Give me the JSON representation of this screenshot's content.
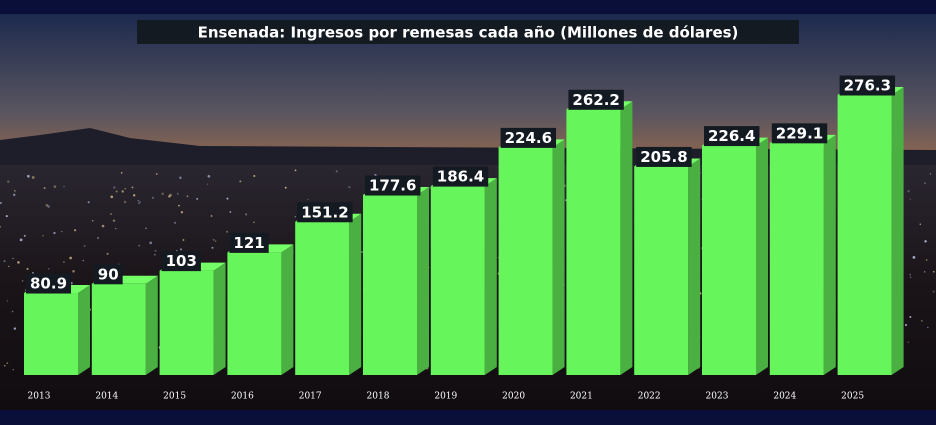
{
  "chart_data": {
    "type": "bar",
    "title": "Ensenada: Ingresos por remesas cada año (Millones de dólares)",
    "categories": [
      "2013",
      "2014",
      "2015",
      "2016",
      "2017",
      "2018",
      "2019",
      "2020",
      "2021",
      "2022",
      "2023",
      "2024",
      "2025"
    ],
    "values": [
      80.9,
      90,
      103,
      121,
      151.2,
      177.6,
      186.4,
      224.6,
      262.2,
      205.8,
      226.4,
      229.1,
      276.3
    ],
    "color": "#66f55a"
  }
}
